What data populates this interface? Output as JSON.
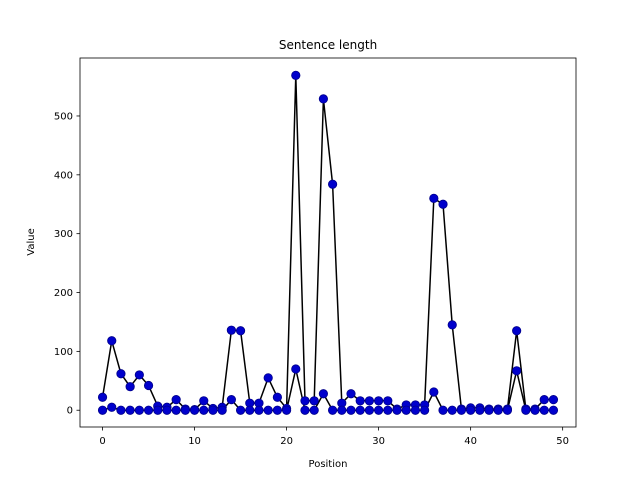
{
  "chart_data": {
    "type": "line",
    "title": "Sentence length",
    "xlabel": "Position",
    "ylabel": "Value",
    "xlim": [
      -2.45,
      51.45
    ],
    "ylim": [
      -28.5,
      598.5
    ],
    "xticks": [
      0,
      10,
      20,
      30,
      40,
      50
    ],
    "yticks": [
      0,
      100,
      200,
      300,
      400,
      500
    ],
    "grid": false,
    "line_color": "#000000",
    "marker_color": "#0000cc",
    "marker_edge_color": "#00008b",
    "series": [
      {
        "values": [
          22,
          118,
          62,
          40,
          60,
          42,
          7,
          5,
          18,
          2,
          1,
          16,
          3,
          5,
          136,
          135,
          12,
          12,
          55,
          22,
          3,
          569,
          16,
          16,
          529,
          384,
          12,
          28,
          16,
          16,
          16,
          16,
          2,
          9,
          9,
          9,
          360,
          350,
          145,
          2,
          4,
          4,
          2,
          2,
          2,
          135,
          2,
          2,
          18,
          18
        ]
      },
      {
        "values": [
          0,
          5,
          0,
          0,
          0,
          0,
          0,
          0,
          0,
          0,
          0,
          0,
          0,
          0,
          18,
          0,
          0,
          0,
          0,
          0,
          0,
          70,
          0,
          0,
          28,
          0,
          0,
          0,
          0,
          0,
          0,
          0,
          0,
          0,
          0,
          0,
          31,
          0,
          0,
          0,
          0,
          0,
          0,
          0,
          0,
          67,
          0,
          0,
          0,
          0
        ]
      }
    ]
  }
}
